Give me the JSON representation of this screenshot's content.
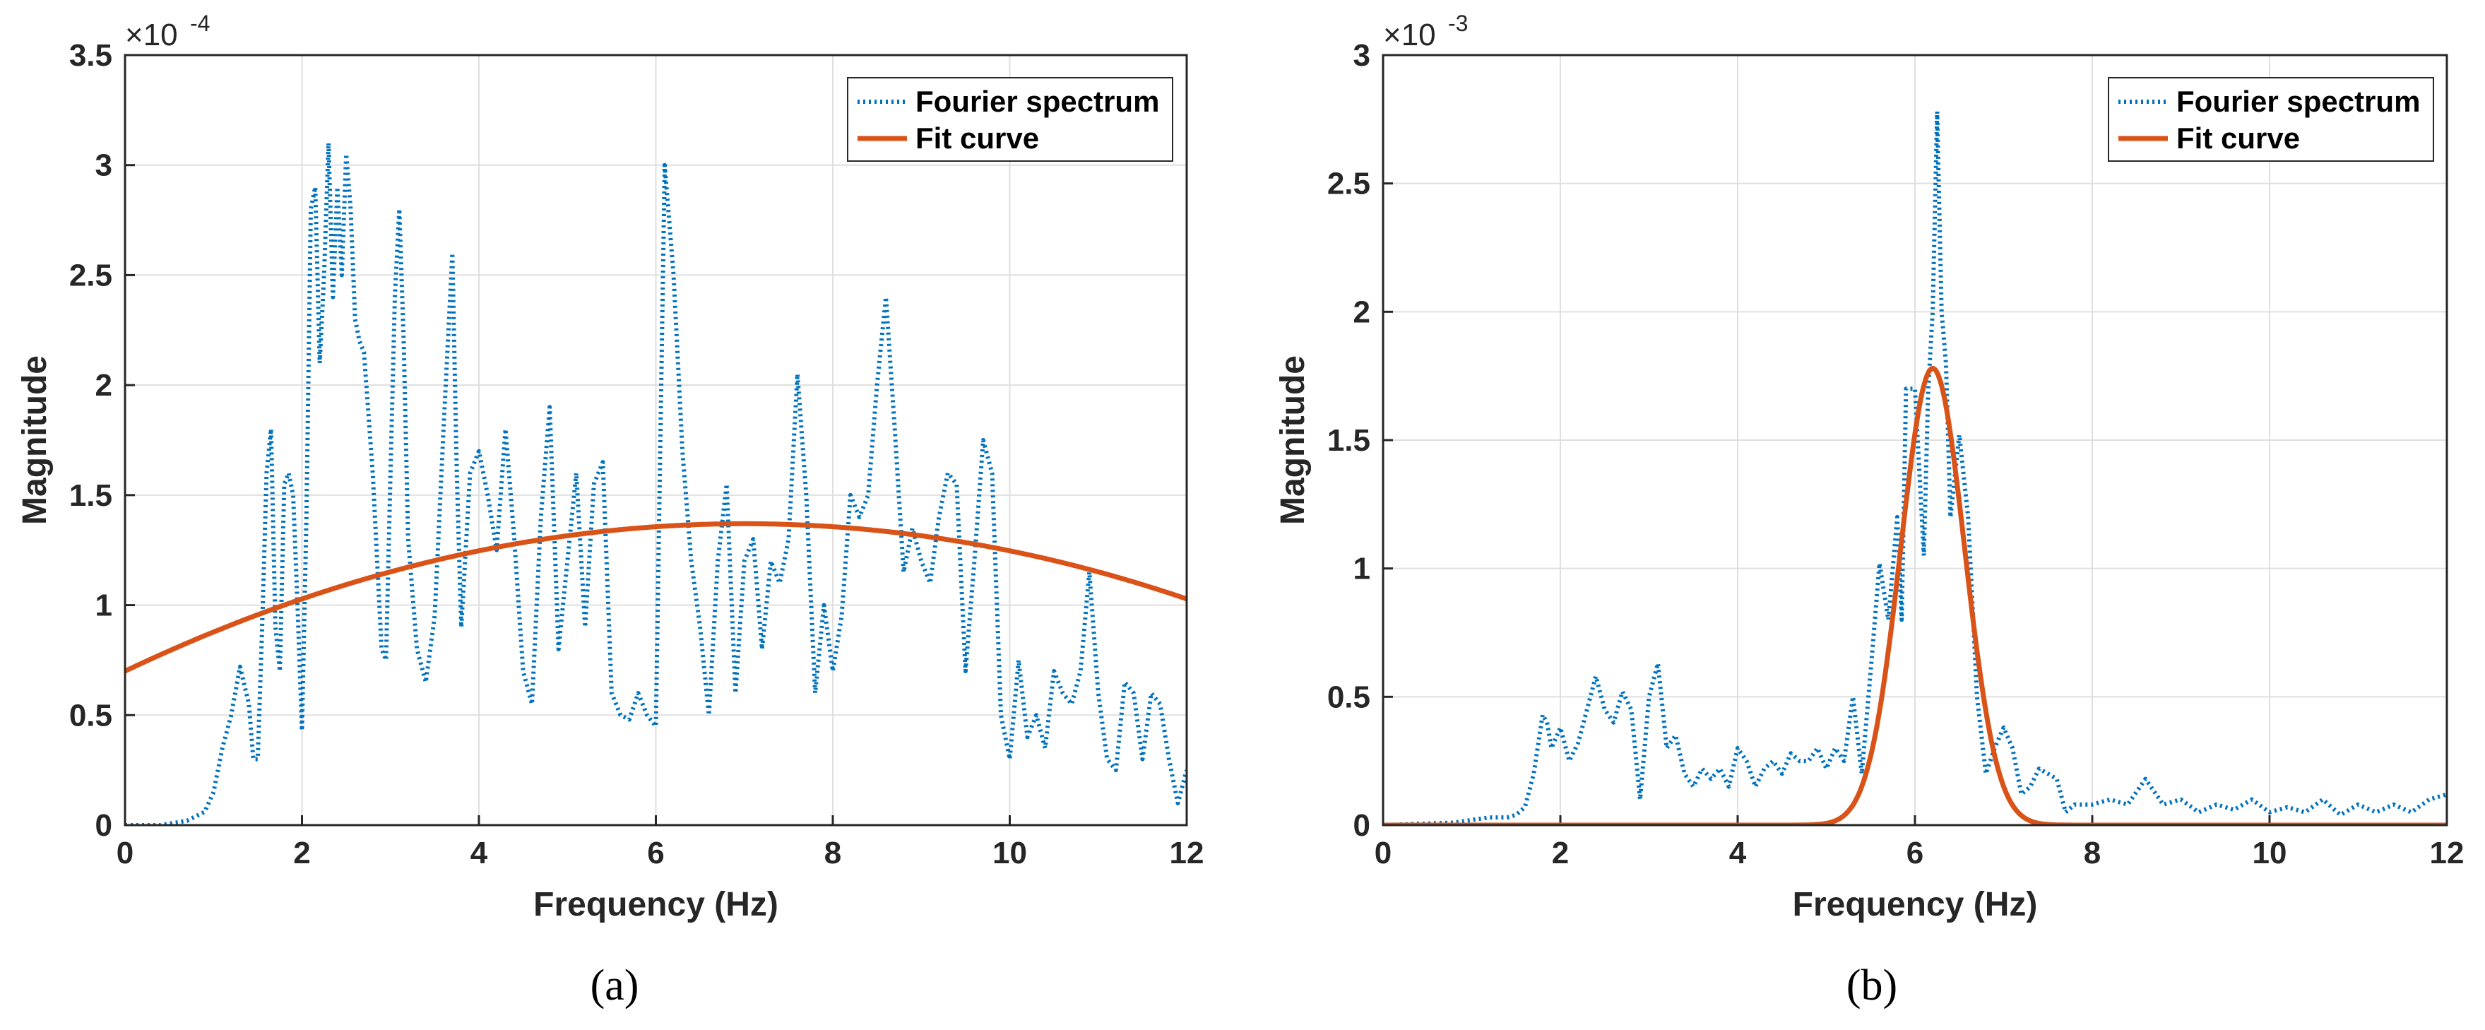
{
  "chart_data": [
    {
      "type": "line",
      "panel_label": "(a)",
      "title": "",
      "xlabel": "Frequency (Hz)",
      "ylabel": "Magnitude",
      "exponent": {
        "base": "×10",
        "power": "-4"
      },
      "xlim": [
        0,
        12
      ],
      "ylim": [
        0,
        3.5
      ],
      "xticks": [
        "0",
        "2",
        "4",
        "6",
        "8",
        "10",
        "12"
      ],
      "yticks": [
        "0",
        "0.5",
        "1",
        "1.5",
        "2",
        "2.5",
        "3",
        "3.5"
      ],
      "grid": true,
      "legend_position": "top-right",
      "colors": {
        "spectrum": "#0072BD",
        "fit": "#D95319"
      },
      "series": [
        {
          "name": "Fourier spectrum",
          "style": "dotted",
          "x": [
            0,
            0.4,
            0.7,
            0.9,
            1.0,
            1.1,
            1.2,
            1.3,
            1.4,
            1.45,
            1.5,
            1.55,
            1.6,
            1.65,
            1.7,
            1.75,
            1.8,
            1.85,
            1.9,
            1.95,
            2.0,
            2.05,
            2.1,
            2.15,
            2.2,
            2.25,
            2.3,
            2.35,
            2.4,
            2.45,
            2.5,
            2.55,
            2.6,
            2.65,
            2.7,
            2.8,
            2.9,
            2.95,
            3.0,
            3.05,
            3.1,
            3.15,
            3.2,
            3.3,
            3.4,
            3.5,
            3.6,
            3.7,
            3.75,
            3.8,
            3.9,
            4.0,
            4.1,
            4.2,
            4.3,
            4.4,
            4.5,
            4.6,
            4.7,
            4.8,
            4.9,
            5.0,
            5.1,
            5.2,
            5.3,
            5.4,
            5.5,
            5.6,
            5.7,
            5.8,
            5.9,
            6.0,
            6.1,
            6.2,
            6.3,
            6.4,
            6.5,
            6.6,
            6.7,
            6.8,
            6.9,
            7.0,
            7.1,
            7.2,
            7.3,
            7.4,
            7.5,
            7.6,
            7.7,
            7.8,
            7.9,
            8.0,
            8.1,
            8.2,
            8.3,
            8.4,
            8.5,
            8.6,
            8.7,
            8.8,
            8.9,
            9.0,
            9.1,
            9.2,
            9.3,
            9.4,
            9.5,
            9.6,
            9.7,
            9.8,
            9.9,
            10.0,
            10.1,
            10.2,
            10.3,
            10.4,
            10.5,
            10.6,
            10.7,
            10.8,
            10.9,
            11.0,
            11.1,
            11.2,
            11.3,
            11.4,
            11.5,
            11.6,
            11.7,
            11.8,
            11.9,
            12.0
          ],
          "y": [
            0,
            0,
            0.02,
            0.06,
            0.15,
            0.35,
            0.5,
            0.72,
            0.55,
            0.3,
            0.3,
            0.9,
            1.6,
            1.8,
            0.9,
            0.7,
            1.55,
            1.6,
            1.5,
            1.0,
            0.43,
            1.4,
            2.8,
            2.9,
            2.1,
            2.5,
            3.1,
            2.4,
            2.9,
            2.5,
            3.05,
            2.8,
            2.3,
            2.2,
            2.15,
            1.6,
            0.8,
            0.75,
            1.6,
            2.4,
            2.8,
            2.2,
            1.3,
            0.8,
            0.65,
            0.95,
            1.8,
            2.6,
            1.6,
            0.9,
            1.6,
            1.7,
            1.5,
            1.25,
            1.8,
            1.3,
            0.7,
            0.55,
            1.4,
            1.9,
            0.8,
            1.2,
            1.6,
            0.9,
            1.55,
            1.65,
            0.6,
            0.5,
            0.48,
            0.6,
            0.5,
            0.45,
            3.0,
            2.5,
            1.7,
            1.2,
            0.9,
            0.5,
            1.2,
            1.55,
            0.6,
            1.2,
            1.3,
            0.8,
            1.2,
            1.1,
            1.3,
            2.05,
            1.5,
            0.6,
            1.0,
            0.7,
            0.95,
            1.5,
            1.4,
            1.5,
            2.0,
            2.4,
            1.8,
            1.15,
            1.35,
            1.2,
            1.1,
            1.4,
            1.6,
            1.55,
            0.7,
            1.2,
            1.75,
            1.6,
            0.5,
            0.3,
            0.75,
            0.4,
            0.5,
            0.35,
            0.7,
            0.6,
            0.55,
            0.7,
            1.15,
            0.6,
            0.3,
            0.25,
            0.65,
            0.6,
            0.3,
            0.6,
            0.55,
            0.3,
            0.1,
            0.25
          ]
        },
        {
          "name": "Fit curve",
          "style": "solid",
          "model": {
            "kind": "quadratic",
            "peak_x": 7.0,
            "peak_y": 1.37,
            "y_at_0": 0.7,
            "y_at_12": 1.0
          }
        }
      ]
    },
    {
      "type": "line",
      "panel_label": "(b)",
      "title": "",
      "xlabel": "Frequency (Hz)",
      "ylabel": "Magnitude",
      "exponent": {
        "base": "×10",
        "power": "-3"
      },
      "xlim": [
        0,
        12
      ],
      "ylim": [
        0,
        3
      ],
      "xticks": [
        "0",
        "2",
        "4",
        "6",
        "8",
        "10",
        "12"
      ],
      "yticks": [
        "0",
        "0.5",
        "1",
        "1.5",
        "2",
        "2.5",
        "3"
      ],
      "grid": true,
      "legend_position": "top-right",
      "colors": {
        "spectrum": "#0072BD",
        "fit": "#D95319"
      },
      "series": [
        {
          "name": "Fourier spectrum",
          "style": "dotted",
          "x": [
            0,
            0.8,
            1.0,
            1.2,
            1.4,
            1.5,
            1.6,
            1.7,
            1.8,
            1.85,
            1.9,
            2.0,
            2.1,
            2.2,
            2.3,
            2.4,
            2.5,
            2.6,
            2.7,
            2.8,
            2.9,
            3.0,
            3.1,
            3.2,
            3.3,
            3.4,
            3.5,
            3.6,
            3.7,
            3.8,
            3.9,
            4.0,
            4.1,
            4.2,
            4.3,
            4.4,
            4.5,
            4.6,
            4.7,
            4.8,
            4.9,
            5.0,
            5.1,
            5.2,
            5.3,
            5.4,
            5.5,
            5.6,
            5.7,
            5.8,
            5.85,
            5.9,
            6.0,
            6.1,
            6.15,
            6.2,
            6.25,
            6.3,
            6.35,
            6.4,
            6.5,
            6.6,
            6.7,
            6.8,
            6.9,
            7.0,
            7.1,
            7.2,
            7.3,
            7.4,
            7.5,
            7.6,
            7.7,
            7.8,
            8.0,
            8.2,
            8.4,
            8.6,
            8.8,
            9.0,
            9.2,
            9.4,
            9.6,
            9.8,
            10.0,
            10.2,
            10.4,
            10.6,
            10.8,
            11.0,
            11.2,
            11.4,
            11.6,
            11.8,
            12.0
          ],
          "y": [
            0,
            0.01,
            0.02,
            0.03,
            0.03,
            0.04,
            0.07,
            0.2,
            0.43,
            0.4,
            0.3,
            0.38,
            0.25,
            0.32,
            0.45,
            0.58,
            0.45,
            0.4,
            0.52,
            0.45,
            0.1,
            0.5,
            0.63,
            0.3,
            0.35,
            0.2,
            0.15,
            0.22,
            0.18,
            0.22,
            0.15,
            0.3,
            0.25,
            0.15,
            0.22,
            0.25,
            0.2,
            0.28,
            0.25,
            0.25,
            0.3,
            0.22,
            0.3,
            0.25,
            0.5,
            0.2,
            0.6,
            1.02,
            0.8,
            1.2,
            0.8,
            1.7,
            1.7,
            1.05,
            1.7,
            2.0,
            2.78,
            2.0,
            1.8,
            1.2,
            1.52,
            1.2,
            0.5,
            0.2,
            0.3,
            0.38,
            0.3,
            0.12,
            0.15,
            0.22,
            0.2,
            0.18,
            0.05,
            0.08,
            0.08,
            0.1,
            0.08,
            0.18,
            0.08,
            0.1,
            0.05,
            0.08,
            0.06,
            0.1,
            0.05,
            0.07,
            0.05,
            0.1,
            0.04,
            0.08,
            0.05,
            0.08,
            0.05,
            0.1,
            0.12
          ]
        },
        {
          "name": "Fit curve",
          "style": "solid",
          "model": {
            "kind": "gaussian",
            "center": 6.2,
            "amplitude": 1.78,
            "sigma": 0.36
          }
        }
      ]
    }
  ]
}
